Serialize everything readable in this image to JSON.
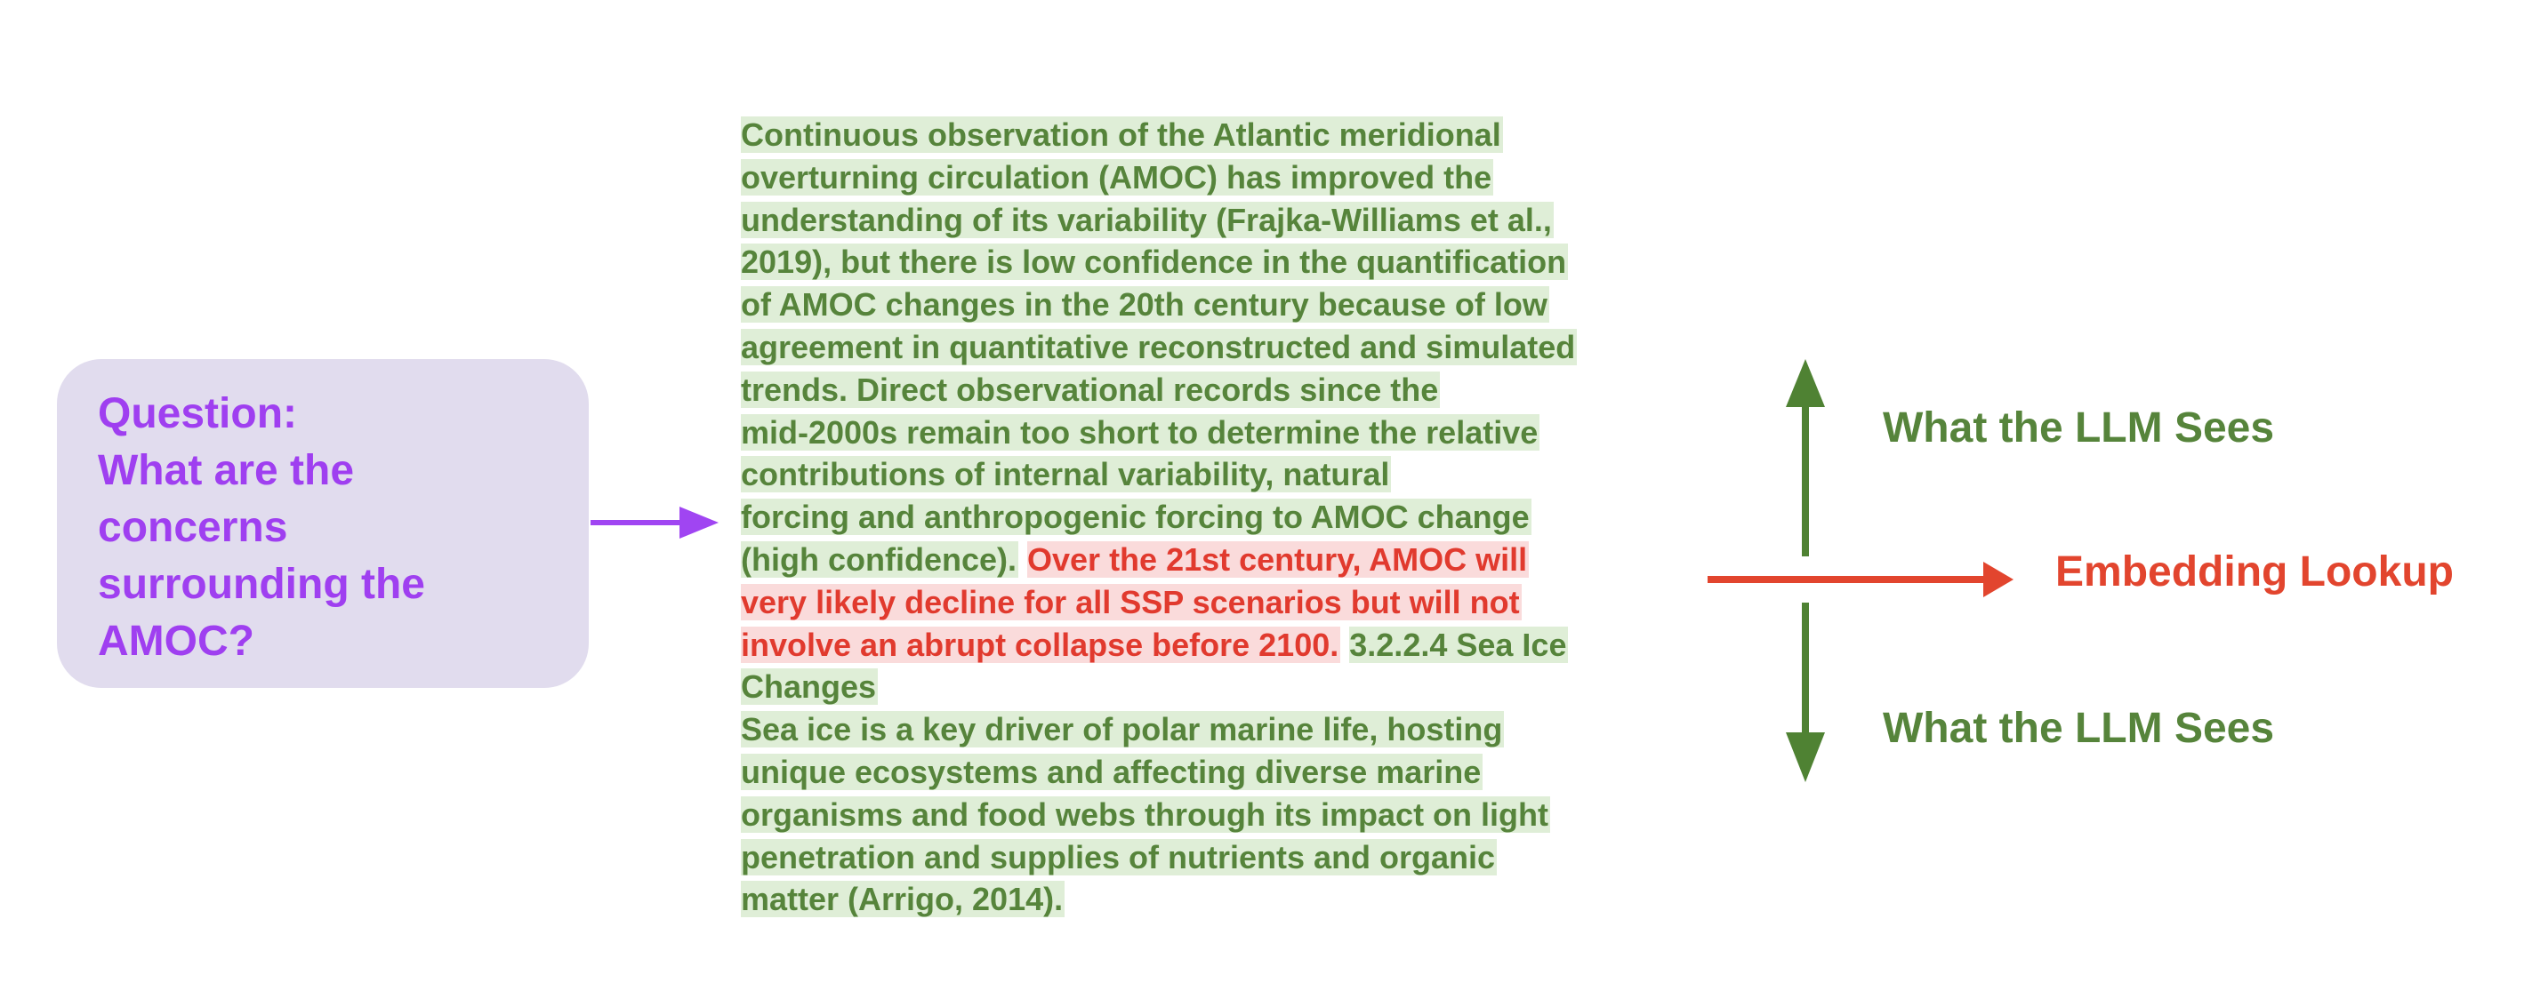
{
  "question": {
    "text": "Question:\nWhat are the\nconcerns\nsurrounding the\nAMOC?"
  },
  "passage": {
    "lines": [
      [
        {
          "text": "Continuous observation of the Atlantic meridional",
          "style": "green"
        }
      ],
      [
        {
          "text": "overturning circulation (AMOC) has improved the",
          "style": "green"
        }
      ],
      [
        {
          "text": "understanding of its variability (Frajka-Williams et  al.,",
          "style": "green"
        }
      ],
      [
        {
          "text": "2019), but there is low confidence in the quantification",
          "style": "green"
        }
      ],
      [
        {
          "text": "of AMOC changes in the 20th century because of low",
          "style": "green"
        }
      ],
      [
        {
          "text": "agreement in quantitative reconstructed and simulated",
          "style": "green"
        }
      ],
      [
        {
          "text": "trends. Direct observational records since the",
          "style": "green"
        }
      ],
      [
        {
          "text": "mid-2000s remain too short to determine the relative",
          "style": "green"
        }
      ],
      [
        {
          "text": "contributions of internal variability, natural",
          "style": "green"
        }
      ],
      [
        {
          "text": "forcing and anthropogenic forcing to AMOC change",
          "style": "green"
        }
      ],
      [
        {
          "text": "(high confidence).",
          "style": "green"
        },
        {
          "text": " ",
          "style": "plain"
        },
        {
          "text": "Over the 21st century, AMOC will",
          "style": "red"
        }
      ],
      [
        {
          "text": "very likely decline for all SSP scenarios but will not",
          "style": "red"
        }
      ],
      [
        {
          "text": "involve an abrupt collapse before 2100.",
          "style": "red"
        },
        {
          "text": " ",
          "style": "plain"
        },
        {
          "text": "3.2.2.4 Sea Ice",
          "style": "green"
        }
      ],
      [
        {
          "text": "Changes",
          "style": "green"
        }
      ],
      [
        {
          "text": "Sea ice is a key driver of polar marine life, hosting",
          "style": "green"
        }
      ],
      [
        {
          "text": "unique ecosystems and affecting diverse marine",
          "style": "green"
        }
      ],
      [
        {
          "text": "organisms and food webs through its impact on light",
          "style": "green"
        }
      ],
      [
        {
          "text": "penetration and supplies of nutrients and organic",
          "style": "green"
        }
      ],
      [
        {
          "text": "matter (Arrigo, 2014).",
          "style": "green"
        }
      ]
    ]
  },
  "labels": {
    "top": "What the LLM Sees",
    "middle": "Embedding Lookup",
    "bottom": "What the LLM Sees"
  },
  "colors": {
    "question_text": "#9f3ff0",
    "question_bg": "#e1dcee",
    "green_text": "#56843b",
    "green_highlight": "#dfeed7",
    "red_text": "#e13a2e",
    "red_highlight": "#fadbdb",
    "arrow_purple": "#a045f2",
    "arrow_green": "#4f8233",
    "arrow_red": "#e2452e"
  }
}
